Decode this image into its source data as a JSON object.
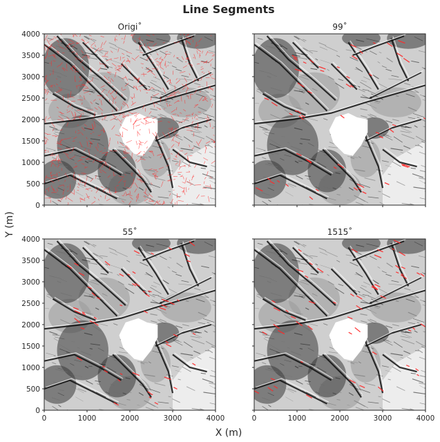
{
  "figure": {
    "title": "Line Segments",
    "xlabel": "X (m)",
    "ylabel": "Y (m)"
  },
  "chart_data": [
    {
      "type": "image-panel",
      "title": "Origi˚",
      "xlim": [
        0,
        4000
      ],
      "ylim": [
        0,
        4000
      ],
      "xticks": [
        0,
        1000,
        2000,
        3000,
        4000
      ],
      "yticks": [
        0,
        500,
        1000,
        1500,
        2000,
        2500,
        3000,
        3500,
        4000
      ],
      "show_xticklabels": false,
      "show_yticklabels": true,
      "segment_density": "high",
      "segment_color": "#ff2a2a"
    },
    {
      "type": "image-panel",
      "title": "99˚",
      "xlim": [
        0,
        4000
      ],
      "ylim": [
        0,
        4000
      ],
      "xticks": [
        0,
        1000,
        2000,
        3000,
        4000
      ],
      "yticks": [
        0,
        500,
        1000,
        1500,
        2000,
        2500,
        3000,
        3500,
        4000
      ],
      "show_xticklabels": false,
      "show_yticklabels": false,
      "segment_density": "low",
      "segment_color": "#ff2a2a"
    },
    {
      "type": "image-panel",
      "title": "55˚",
      "xlim": [
        0,
        4000
      ],
      "ylim": [
        0,
        4000
      ],
      "xticks": [
        0,
        1000,
        2000,
        3000,
        4000
      ],
      "yticks": [
        0,
        500,
        1000,
        1500,
        2000,
        2500,
        3000,
        3500,
        4000
      ],
      "show_xticklabels": true,
      "show_yticklabels": true,
      "segment_density": "low",
      "segment_color": "#ff2a2a"
    },
    {
      "type": "image-panel",
      "title": "1515˚",
      "xlim": [
        0,
        4000
      ],
      "ylim": [
        0,
        4000
      ],
      "xticks": [
        0,
        1000,
        2000,
        3000,
        4000
      ],
      "yticks": [
        0,
        500,
        1000,
        1500,
        2000,
        2500,
        3000,
        3500,
        4000
      ],
      "show_xticklabels": true,
      "show_yticklabels": false,
      "segment_density": "low",
      "segment_color": "#ff2a2a"
    }
  ]
}
